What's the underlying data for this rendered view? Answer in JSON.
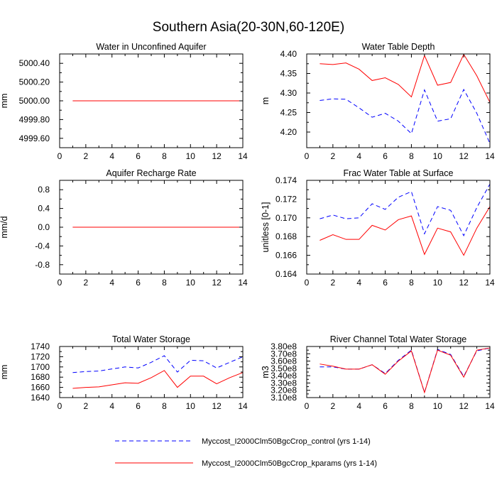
{
  "figure": {
    "title": "Southern Asia(20-30N,60-120E)"
  },
  "legend": {
    "placement": "bottom-center",
    "entries": [
      {
        "label": "Myccost_I2000Clm50BgcCrop_control (yrs 1-14)",
        "color": "#0000ff",
        "dash": "dashed"
      },
      {
        "label": "Myccost_I2000Clm50BgcCrop_kparams (yrs 1-14)",
        "color": "#ff0000",
        "dash": "solid"
      }
    ]
  },
  "chart_data": [
    {
      "type": "line",
      "title": "Water in Unconfined Aquifer",
      "xlabel": "",
      "ylabel": "mm",
      "xlim": [
        0,
        14
      ],
      "ylim": [
        4999.5,
        5000.5
      ],
      "xticks": [
        0,
        2,
        4,
        6,
        8,
        10,
        12,
        14
      ],
      "xtick_labels": [
        "0",
        "2",
        "4",
        "6",
        "8",
        "10",
        "12",
        "14"
      ],
      "yticks": [
        4999.6,
        4999.8,
        5000.0,
        5000.2,
        5000.4
      ],
      "ytick_labels": [
        "4999.60",
        "4999.80",
        "5000.00",
        "5000.20",
        "5000.40"
      ],
      "x": [
        1,
        2,
        3,
        4,
        5,
        6,
        7,
        8,
        9,
        10,
        11,
        12,
        13,
        14
      ],
      "series": [
        {
          "name": "Myccost_I2000Clm50BgcCrop_control (yrs 1-14)",
          "color": "#0000ff",
          "dash": "dashed",
          "values": [
            5000,
            5000,
            5000,
            5000,
            5000,
            5000,
            5000,
            5000,
            5000,
            5000,
            5000,
            5000,
            5000,
            5000
          ]
        },
        {
          "name": "Myccost_I2000Clm50BgcCrop_kparams (yrs 1-14)",
          "color": "#ff0000",
          "dash": "solid",
          "values": [
            5000,
            5000,
            5000,
            5000,
            5000,
            5000,
            5000,
            5000,
            5000,
            5000,
            5000,
            5000,
            5000,
            5000
          ]
        }
      ]
    },
    {
      "type": "line",
      "title": "Water Table Depth",
      "xlabel": "",
      "ylabel": "m",
      "xlim": [
        0,
        14
      ],
      "ylim": [
        4.16,
        4.4
      ],
      "xticks": [
        0,
        2,
        4,
        6,
        8,
        10,
        12,
        14
      ],
      "xtick_labels": [
        "0",
        "2",
        "4",
        "6",
        "8",
        "10",
        "12",
        "14"
      ],
      "yticks": [
        4.2,
        4.25,
        4.3,
        4.35,
        4.4
      ],
      "ytick_labels": [
        "4.20",
        "4.25",
        "4.30",
        "4.35",
        "4.40"
      ],
      "x": [
        1,
        2,
        3,
        4,
        5,
        6,
        7,
        8,
        9,
        10,
        11,
        12,
        13,
        14
      ],
      "series": [
        {
          "name": "Myccost_I2000Clm50BgcCrop_control (yrs 1-14)",
          "color": "#0000ff",
          "dash": "dashed",
          "values": [
            4.281,
            4.285,
            4.284,
            4.262,
            4.238,
            4.248,
            4.228,
            4.196,
            4.308,
            4.228,
            4.234,
            4.309,
            4.248,
            4.171
          ]
        },
        {
          "name": "Myccost_I2000Clm50BgcCrop_kparams (yrs 1-14)",
          "color": "#ff0000",
          "dash": "solid",
          "values": [
            4.375,
            4.373,
            4.377,
            4.361,
            4.332,
            4.339,
            4.322,
            4.29,
            4.396,
            4.32,
            4.327,
            4.399,
            4.344,
            4.276
          ]
        }
      ]
    },
    {
      "type": "line",
      "title": "Aquifer Recharge Rate",
      "xlabel": "",
      "ylabel": "mm/d",
      "xlim": [
        0,
        14
      ],
      "ylim": [
        -1.0,
        1.0
      ],
      "xticks": [
        0,
        2,
        4,
        6,
        8,
        10,
        12,
        14
      ],
      "xtick_labels": [
        "0",
        "2",
        "4",
        "6",
        "8",
        "10",
        "12",
        "14"
      ],
      "yticks": [
        -0.8,
        -0.4,
        0.0,
        0.4,
        0.8
      ],
      "ytick_labels": [
        "-0.8",
        "-0.4",
        "0.0",
        "0.4",
        "0.8"
      ],
      "x": [
        1,
        2,
        3,
        4,
        5,
        6,
        7,
        8,
        9,
        10,
        11,
        12,
        13,
        14
      ],
      "series": [
        {
          "name": "Myccost_I2000Clm50BgcCrop_control (yrs 1-14)",
          "color": "#0000ff",
          "dash": "dashed",
          "values": [
            0,
            0,
            0,
            0,
            0,
            0,
            0,
            0,
            0,
            0,
            0,
            0,
            0,
            0
          ]
        },
        {
          "name": "Myccost_I2000Clm50BgcCrop_kparams (yrs 1-14)",
          "color": "#ff0000",
          "dash": "solid",
          "values": [
            0,
            0,
            0,
            0,
            0,
            0,
            0,
            0,
            0,
            0,
            0,
            0,
            0,
            0
          ]
        }
      ]
    },
    {
      "type": "line",
      "title": "Frac Water Table at Surface",
      "xlabel": "",
      "ylabel": "unitless [0-1]",
      "xlim": [
        0,
        14
      ],
      "ylim": [
        0.164,
        0.174
      ],
      "xticks": [
        0,
        2,
        4,
        6,
        8,
        10,
        12,
        14
      ],
      "xtick_labels": [
        "0",
        "2",
        "4",
        "6",
        "8",
        "10",
        "12",
        "14"
      ],
      "yticks": [
        0.164,
        0.166,
        0.168,
        0.17,
        0.172,
        0.174
      ],
      "ytick_labels": [
        "0.164",
        "0.166",
        "0.168",
        "0.170",
        "0.172",
        "0.174"
      ],
      "x": [
        1,
        2,
        3,
        4,
        5,
        6,
        7,
        8,
        9,
        10,
        11,
        12,
        13,
        14
      ],
      "series": [
        {
          "name": "Myccost_I2000Clm50BgcCrop_control (yrs 1-14)",
          "color": "#0000ff",
          "dash": "dashed",
          "values": [
            0.1699,
            0.1703,
            0.1699,
            0.17,
            0.1715,
            0.1709,
            0.1722,
            0.1728,
            0.1683,
            0.1712,
            0.1708,
            0.1681,
            0.1711,
            0.1736
          ]
        },
        {
          "name": "Myccost_I2000Clm50BgcCrop_kparams (yrs 1-14)",
          "color": "#ff0000",
          "dash": "solid",
          "values": [
            0.1676,
            0.1682,
            0.1677,
            0.1677,
            0.1692,
            0.1687,
            0.1698,
            0.1702,
            0.1661,
            0.1689,
            0.1685,
            0.166,
            0.1689,
            0.1712
          ]
        }
      ]
    },
    {
      "type": "line",
      "title": "Total Water Storage",
      "xlabel": "",
      "ylabel": "mm",
      "xlim": [
        0,
        14
      ],
      "ylim": [
        1640,
        1740
      ],
      "xticks": [
        0,
        2,
        4,
        6,
        8,
        10,
        12,
        14
      ],
      "xtick_labels": [
        "0",
        "2",
        "4",
        "6",
        "8",
        "10",
        "12",
        "14"
      ],
      "yticks": [
        1640,
        1660,
        1680,
        1700,
        1720,
        1740
      ],
      "ytick_labels": [
        "1640",
        "1660",
        "1680",
        "1700",
        "1720",
        "1740"
      ],
      "x": [
        1,
        2,
        3,
        4,
        5,
        6,
        7,
        8,
        9,
        10,
        11,
        12,
        13,
        14
      ],
      "series": [
        {
          "name": "Myccost_I2000Clm50BgcCrop_control (yrs 1-14)",
          "color": "#0000ff",
          "dash": "dashed",
          "values": [
            1689,
            1691,
            1692,
            1696,
            1700,
            1698,
            1709,
            1722,
            1690,
            1713,
            1712,
            1698,
            1709,
            1720
          ]
        },
        {
          "name": "Myccost_I2000Clm50BgcCrop_kparams (yrs 1-14)",
          "color": "#ff0000",
          "dash": "solid",
          "values": [
            1658,
            1660,
            1661,
            1665,
            1669,
            1668,
            1679,
            1693,
            1660,
            1682,
            1682,
            1667,
            1679,
            1689
          ]
        }
      ]
    },
    {
      "type": "line",
      "title": "River Channel Total Water Storage",
      "xlabel": "",
      "ylabel": "m3",
      "xlim": [
        0,
        14
      ],
      "ylim": [
        310000000.0,
        380000000.0
      ],
      "xticks": [
        0,
        2,
        4,
        6,
        8,
        10,
        12,
        14
      ],
      "xtick_labels": [
        "0",
        "2",
        "4",
        "6",
        "8",
        "10",
        "12",
        "14"
      ],
      "yticks": [
        310000000.0,
        320000000.0,
        330000000.0,
        340000000.0,
        350000000.0,
        360000000.0,
        370000000.0,
        380000000.0
      ],
      "ytick_labels": [
        "3.10e8",
        "3.20e8",
        "3.30e8",
        "3.40e8",
        "3.50e8",
        "3.60e8",
        "3.70e8",
        "3.80e8"
      ],
      "x": [
        1,
        2,
        3,
        4,
        5,
        6,
        7,
        8,
        9,
        10,
        11,
        12,
        13,
        14
      ],
      "series": [
        {
          "name": "Myccost_I2000Clm50BgcCrop_control (yrs 1-14)",
          "color": "#0000ff",
          "dash": "dashed",
          "values": [
            352000000.0,
            352000000.0,
            349000000.0,
            349000000.0,
            355000000.0,
            343000000.0,
            361000000.0,
            375000000.0,
            317000000.0,
            376000000.0,
            369000000.0,
            339000000.0,
            374000000.0,
            378000000.0
          ]
        },
        {
          "name": "Myccost_I2000Clm50BgcCrop_kparams (yrs 1-14)",
          "color": "#ff0000",
          "dash": "solid",
          "values": [
            356000000.0,
            353000000.0,
            349000000.0,
            349000000.0,
            355000000.0,
            342000000.0,
            360000000.0,
            374000000.0,
            317000000.0,
            375000000.0,
            368000000.0,
            338000000.0,
            375000000.0,
            378000000.0
          ]
        }
      ]
    }
  ]
}
